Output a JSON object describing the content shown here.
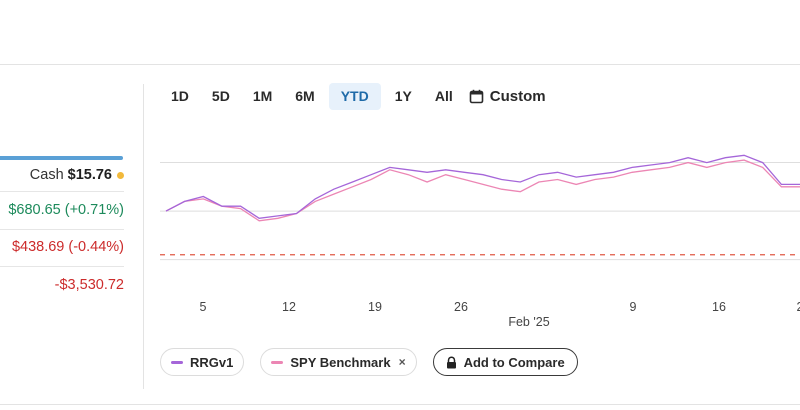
{
  "summary": {
    "cash_label": "Cash",
    "cash_value": "$15.76",
    "gain_text": "$680.65 (+0.71%)",
    "loss_text": "$438.69 (-0.44%)",
    "total_text": "-$3,530.72"
  },
  "range_tabs": [
    "1D",
    "5D",
    "1M",
    "6M",
    "YTD",
    "1Y",
    "All"
  ],
  "active_tab": "YTD",
  "custom_label": "Custom",
  "legend": {
    "series_1": "RRGv1",
    "series_2": "SPY Benchmark",
    "remove_symbol": "×",
    "compare_label": "Add to Compare"
  },
  "colors": {
    "rrg": "#a566d9",
    "spy": "#ec86b4",
    "baseline": "#e05a45",
    "gain": "#1c8a5b",
    "loss": "#cc2b2b",
    "accent": "#5aa0d6"
  },
  "chart_data": {
    "type": "line",
    "title": "",
    "x_tick_labels": [
      "5",
      "12",
      "19",
      "26",
      "9",
      "16",
      "2"
    ],
    "x_month_label": "Feb '25",
    "x": [
      "Jan 2",
      "Jan 3",
      "Jan 6",
      "Jan 7",
      "Jan 8",
      "Jan 10",
      "Jan 13",
      "Jan 14",
      "Jan 15",
      "Jan 16",
      "Jan 17",
      "Jan 21",
      "Jan 22",
      "Jan 23",
      "Jan 24",
      "Jan 27",
      "Jan 28",
      "Jan 29",
      "Jan 30",
      "Jan 31",
      "Feb 3",
      "Feb 4",
      "Feb 5",
      "Feb 6",
      "Feb 7",
      "Feb 10",
      "Feb 11",
      "Feb 12",
      "Feb 13",
      "Feb 14",
      "Feb 18",
      "Feb 19",
      "Feb 20",
      "Feb 21",
      "Feb 24"
    ],
    "series": [
      {
        "name": "RRGv1",
        "values": [
          0.0,
          0.4,
          0.6,
          0.2,
          0.2,
          -0.3,
          -0.2,
          -0.1,
          0.5,
          0.9,
          1.2,
          1.5,
          1.8,
          1.7,
          1.6,
          1.7,
          1.6,
          1.5,
          1.3,
          1.2,
          1.5,
          1.6,
          1.4,
          1.5,
          1.6,
          1.8,
          1.9,
          2.0,
          2.2,
          2.0,
          2.2,
          2.3,
          2.0,
          1.1,
          1.1
        ]
      },
      {
        "name": "SPY Benchmark",
        "values": [
          0.0,
          0.4,
          0.5,
          0.2,
          0.1,
          -0.4,
          -0.3,
          -0.1,
          0.4,
          0.7,
          1.0,
          1.3,
          1.7,
          1.5,
          1.2,
          1.5,
          1.3,
          1.1,
          0.9,
          0.8,
          1.2,
          1.3,
          1.1,
          1.3,
          1.4,
          1.6,
          1.7,
          1.8,
          2.0,
          1.8,
          2.0,
          2.1,
          1.8,
          1.0,
          1.0
        ]
      }
    ],
    "baseline_value": -1.8,
    "grid": true,
    "legend_position": "bottom-left"
  }
}
